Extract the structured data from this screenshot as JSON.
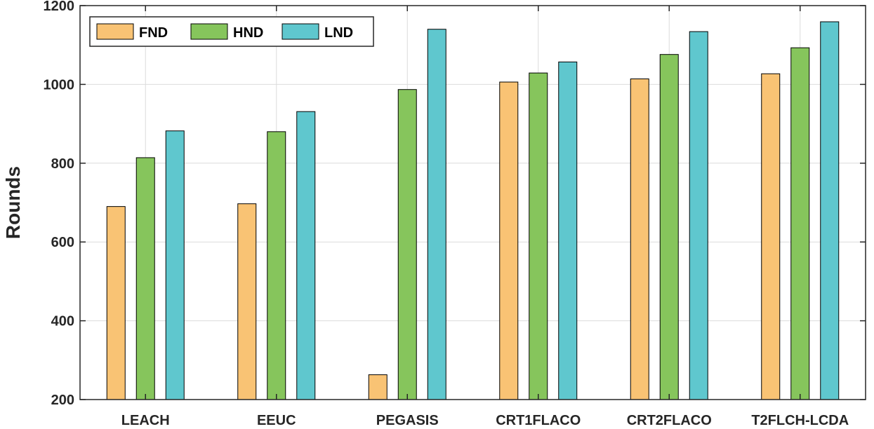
{
  "chart_data": {
    "type": "bar",
    "title": "",
    "xlabel": "",
    "ylabel": "Rounds",
    "ylim": [
      200,
      1200
    ],
    "yticks": [
      200,
      400,
      600,
      800,
      1000,
      1200
    ],
    "grid": true,
    "legend_position": "top-left",
    "categories": [
      "LEACH",
      "EEUC",
      "PEGASIS",
      "CRT1FLACO",
      "CRT2FLACO",
      "T2FLCH-LCDA"
    ],
    "series": [
      {
        "name": "FND",
        "color": "#F9C374",
        "values": [
          690,
          697,
          263,
          1006,
          1014,
          1027
        ]
      },
      {
        "name": "HND",
        "color": "#86C55C",
        "values": [
          814,
          880,
          987,
          1029,
          1076,
          1093
        ]
      },
      {
        "name": "LND",
        "color": "#5FC7CE",
        "values": [
          882,
          931,
          1140,
          1057,
          1134,
          1159
        ]
      }
    ]
  }
}
